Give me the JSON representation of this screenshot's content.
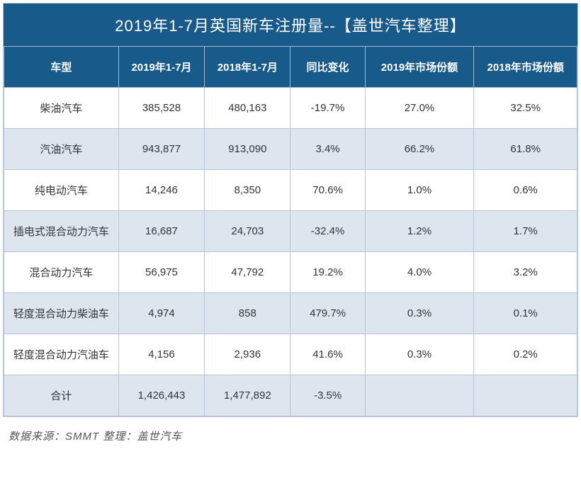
{
  "title": "2019年1-7月英国新车注册量--【盖世汽车整理】",
  "columns": [
    "车型",
    "2019年1-7月",
    "2018年1-7月",
    "同比变化",
    "2019年市场份额",
    "2018年市场份额"
  ],
  "rows": [
    [
      "柴油汽车",
      "385,528",
      "480,163",
      "-19.7%",
      "27.0%",
      "32.5%"
    ],
    [
      "汽油汽车",
      "943,877",
      "913,090",
      "3.4%",
      "66.2%",
      "61.8%"
    ],
    [
      "纯电动汽车",
      "14,246",
      "8,350",
      "70.6%",
      "1.0%",
      "0.6%"
    ],
    [
      "插电式混合动力汽车",
      "16,687",
      "24,703",
      "-32.4%",
      "1.2%",
      "1.7%"
    ],
    [
      "混合动力汽车",
      "56,975",
      "47,792",
      "19.2%",
      "4.0%",
      "3.2%"
    ],
    [
      "轻度混合动力柴油车",
      "4,974",
      "858",
      "479.7%",
      "0.3%",
      "0.1%"
    ],
    [
      "轻度混合动力汽油车",
      "4,156",
      "2,936",
      "41.6%",
      "0.3%",
      "0.2%"
    ],
    [
      "合计",
      "1,426,443",
      "1,477,892",
      "-3.5%",
      "",
      ""
    ]
  ],
  "source": "数据来源：SMMT 整理：盖世汽车",
  "styling": {
    "title_bg": "#185a8a",
    "title_color": "#ffffff",
    "title_fontsize": 22,
    "header_bg": "#185a8a",
    "header_color": "#ffffff",
    "header_fontsize": 15,
    "cell_fontsize": 15,
    "cell_color": "#333333",
    "row_alt_bg": "#dde6ef",
    "row_white_bg": "#ffffff",
    "border_color": "#b8c5d6",
    "source_color": "#555555",
    "col_widths_pct": [
      20,
      15,
      15,
      13,
      19,
      18
    ]
  }
}
